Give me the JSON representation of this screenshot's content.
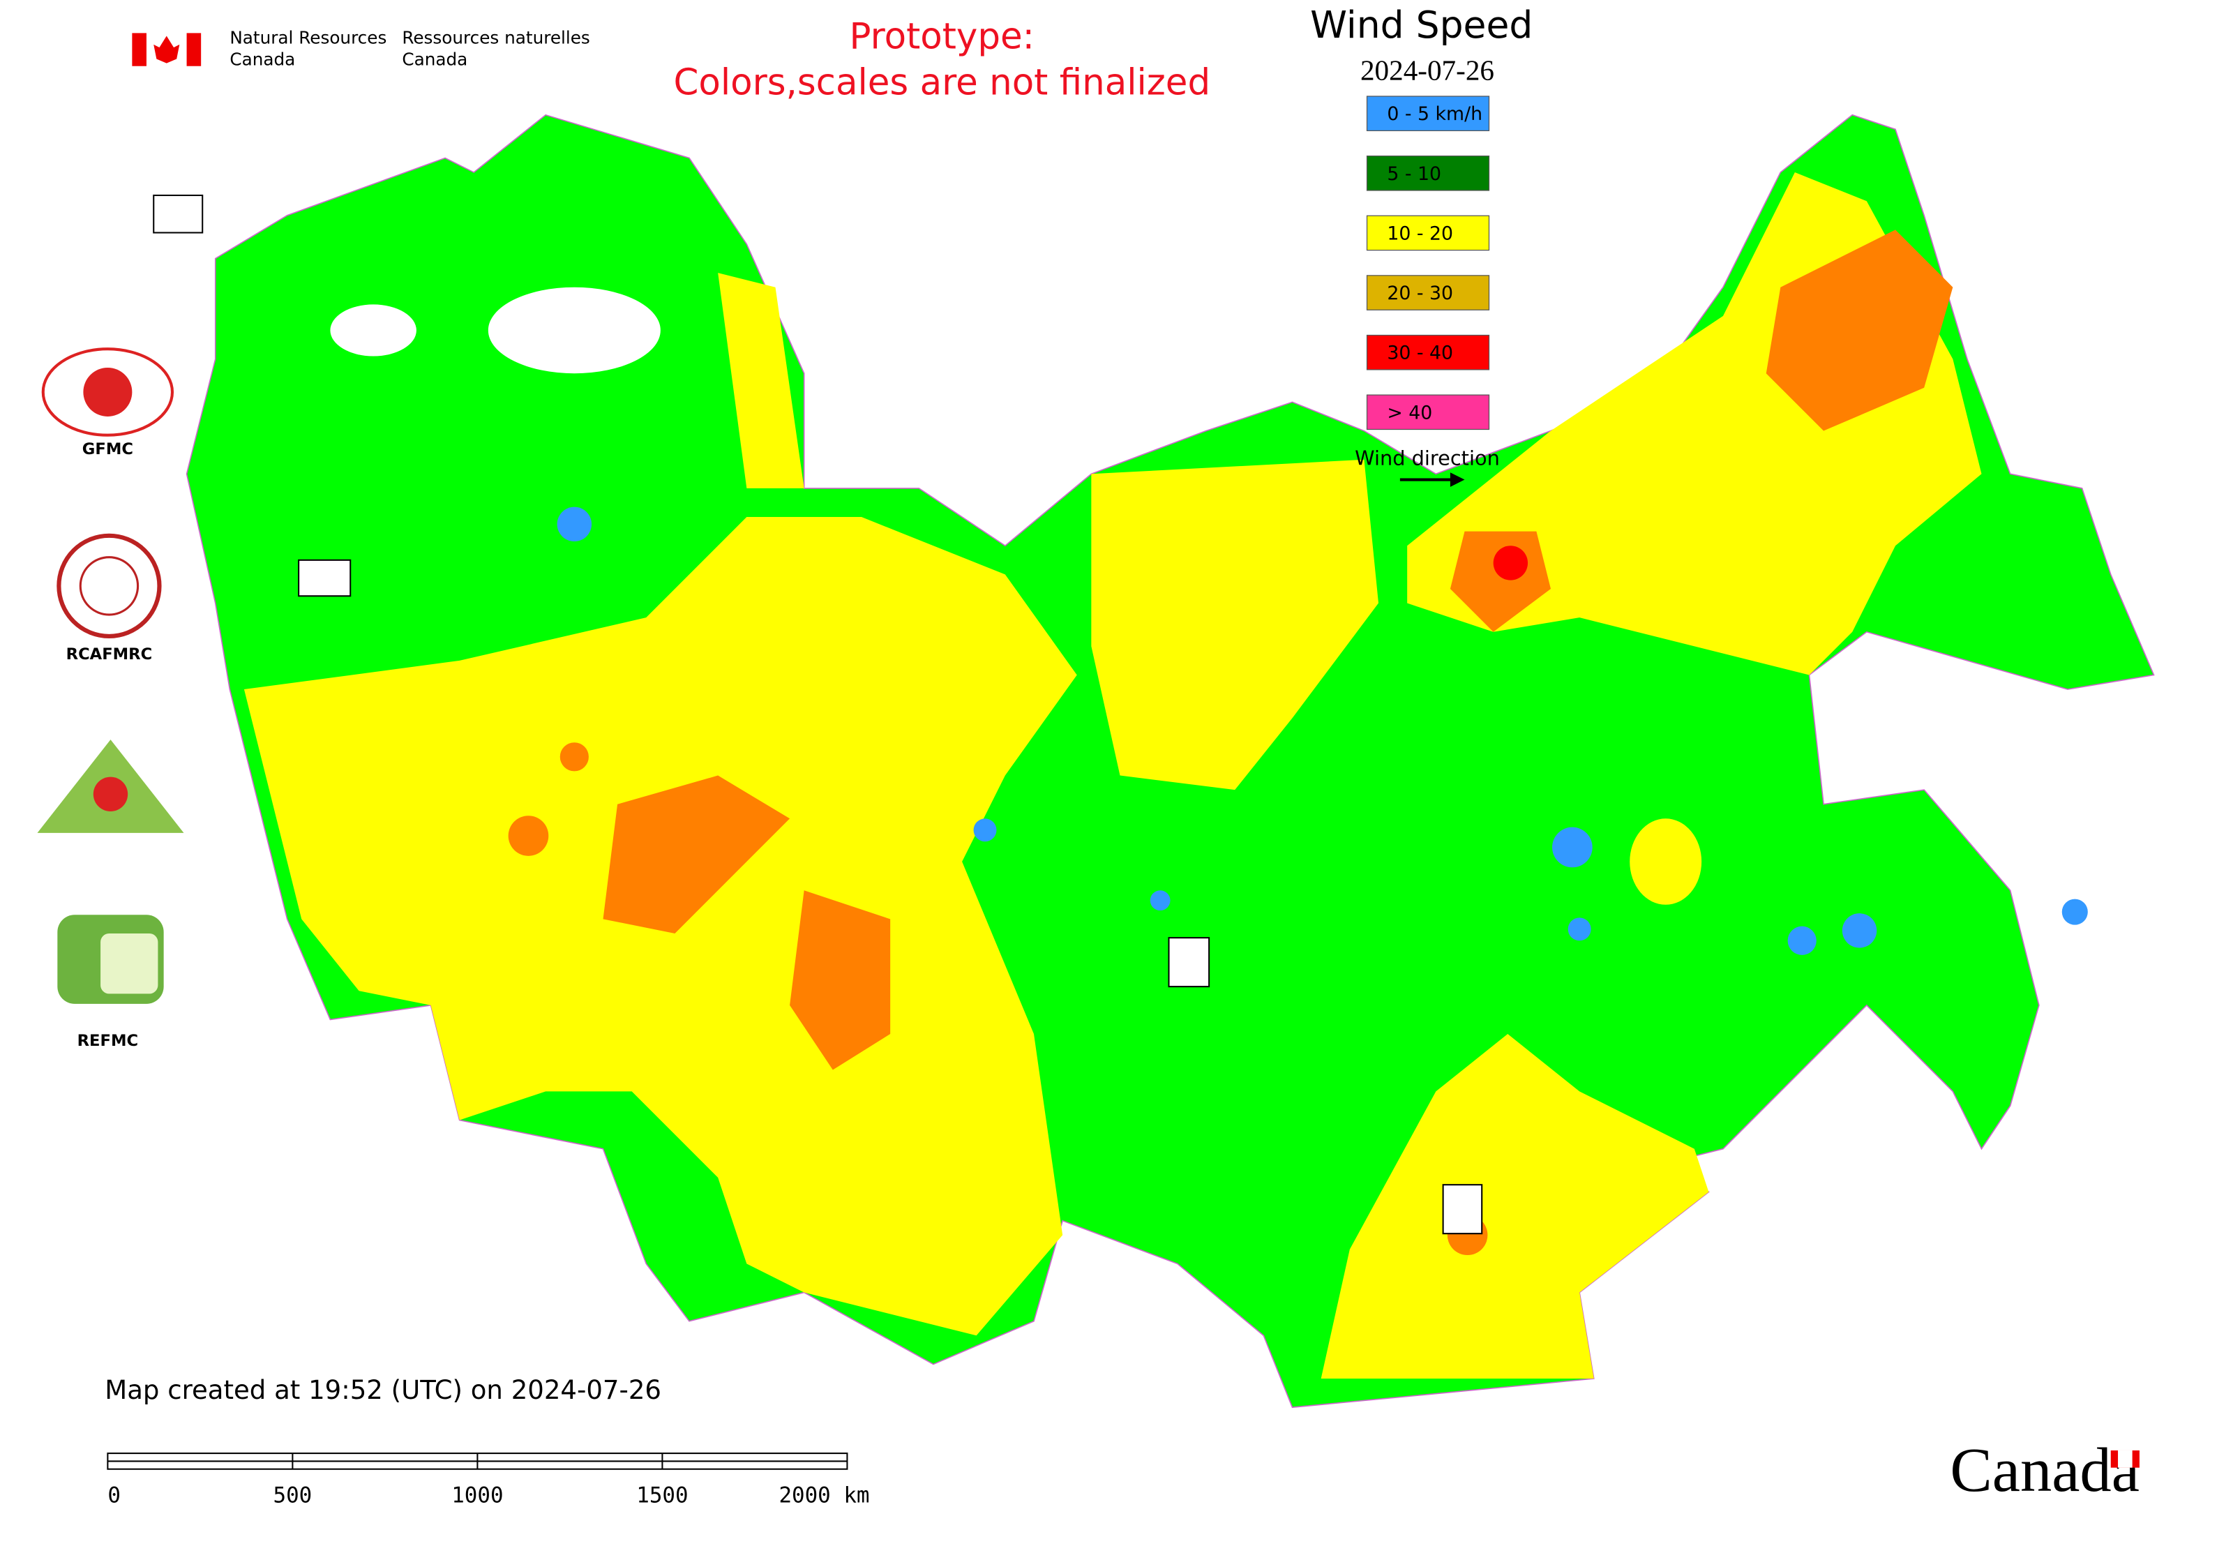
{
  "header": {
    "agency_en": [
      "Natural Resources",
      "Canada"
    ],
    "agency_fr": [
      "Ressources naturelles",
      "Canada"
    ],
    "prototype": [
      "Prototype:",
      "Colors,scales are not finalized"
    ]
  },
  "legend": {
    "title": "Wind Speed",
    "date": "2024-07-26",
    "items": [
      {
        "label": "0 - 5 km/h",
        "color": "#3399ff"
      },
      {
        "label": "5 - 10",
        "color": "#008000"
      },
      {
        "label": "10 - 20",
        "color": "#ffff00"
      },
      {
        "label": "20 - 30",
        "color": "#ddb300"
      },
      {
        "label": "30 - 40",
        "color": "#ff0000"
      },
      {
        "label": "> 40",
        "color": "#ff3399"
      }
    ],
    "arrow_label": "Wind direction"
  },
  "logos": [
    "GFMC",
    "RCAFMRC",
    "REFMC"
  ],
  "footer": {
    "created": "Map created at 19:52 (UTC) on 2024-07-26",
    "scale_bar": [
      "0",
      "500",
      "1000",
      "1500",
      "2000 km"
    ],
    "wordmark": "Canada"
  }
}
